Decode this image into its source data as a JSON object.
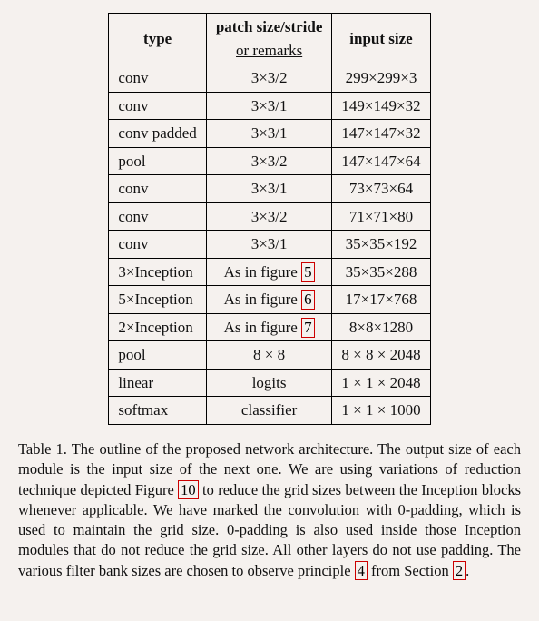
{
  "table": {
    "headers": {
      "type": "type",
      "patch_line1": "patch size/stride",
      "patch_line2": "or remarks",
      "input": "input size"
    },
    "rows": [
      {
        "type": "conv",
        "patch": "3×3/2",
        "ref": null,
        "input": "299×299×3"
      },
      {
        "type": "conv",
        "patch": "3×3/1",
        "ref": null,
        "input": "149×149×32"
      },
      {
        "type": "conv padded",
        "patch": "3×3/1",
        "ref": null,
        "input": "147×147×32"
      },
      {
        "type": "pool",
        "patch": "3×3/2",
        "ref": null,
        "input": "147×147×64"
      },
      {
        "type": "conv",
        "patch": "3×3/1",
        "ref": null,
        "input": "73×73×64"
      },
      {
        "type": "conv",
        "patch": "3×3/2",
        "ref": null,
        "input": "71×71×80"
      },
      {
        "type": "conv",
        "patch": "3×3/1",
        "ref": null,
        "input": "35×35×192"
      },
      {
        "type": "3×Inception",
        "patch": "As in figure ",
        "ref": "5",
        "input": "35×35×288"
      },
      {
        "type": "5×Inception",
        "patch": "As in figure ",
        "ref": "6",
        "input": "17×17×768"
      },
      {
        "type": "2×Inception",
        "patch": "As in figure ",
        "ref": "7",
        "input": "8×8×1280"
      },
      {
        "type": "pool",
        "patch": "8 × 8",
        "ref": null,
        "input": "8 × 8 × 2048"
      },
      {
        "type": "linear",
        "patch": "logits",
        "ref": null,
        "input": "1 × 1 × 2048"
      },
      {
        "type": "softmax",
        "patch": "classifier",
        "ref": null,
        "input": "1 × 1 × 1000"
      }
    ]
  },
  "caption": {
    "pre": "Table 1. The outline of the proposed network architecture. The output size of each module is the input size of the next one. We are using variations of reduction technique depicted Figure ",
    "ref10": "10",
    "mid": " to reduce the grid sizes between the Inception blocks whenever applicable. We have marked the convolution with 0-padding, which is used to maintain the grid size. 0-padding is also used inside those Inception modules that do not reduce the grid size. All other layers do not use padding. The various filter bank sizes are chosen to observe principle ",
    "ref4": "4",
    "mid2": " from Section ",
    "ref2": "2",
    "post": "."
  },
  "style": {
    "border_color": "#000000",
    "ref_border_color": "#c00000",
    "background": "#f5f1ee",
    "font_family": "Times New Roman"
  }
}
